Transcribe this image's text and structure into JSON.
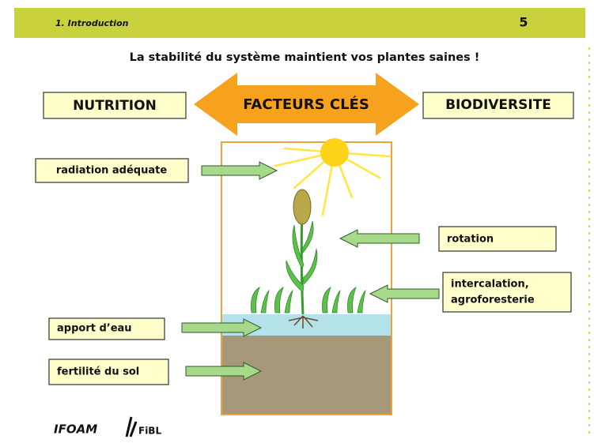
{
  "header": {
    "section": "1. Introduction",
    "page": "5"
  },
  "title": "La stabilité du système maintient vos plantes saines !",
  "banner": {
    "left": "NUTRITION",
    "center": "FACTEURS CLÉS",
    "right": "BIODIVERSITE"
  },
  "labels": {
    "radiation": "radiation adéquate",
    "rotation": "rotation",
    "intercalation": [
      "intercalation,",
      "agroforesterie"
    ],
    "water": "apport d’eau",
    "soil": "fertilité du sol"
  },
  "logos": [
    "IFOAM",
    "FiBL"
  ]
}
